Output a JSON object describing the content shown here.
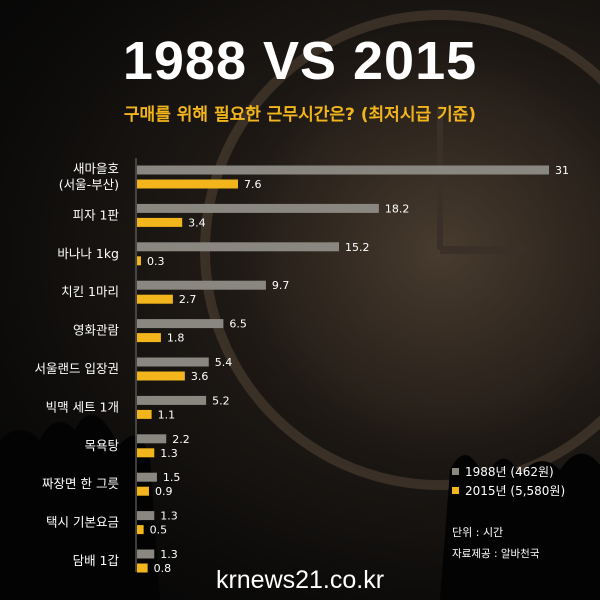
{
  "header": {
    "title": "1988 VS 2015",
    "subtitle": "구매를 위해 필요한 근무시간은? (최저시급 기준)"
  },
  "legend": {
    "items": [
      {
        "label": "1988년 (462원)",
        "color": "#8a8780"
      },
      {
        "label": "2015년 (5,580원)",
        "color": "#f2b51c"
      }
    ]
  },
  "unit_text": "단위 : 시간",
  "source_text": "자료제공 : 알바천국",
  "site_text": "krnews21.co.kr",
  "chart_data": {
    "type": "bar",
    "orientation": "horizontal",
    "categories": [
      [
        "새마을호",
        "(서울-부산)"
      ],
      [
        "피자 1판"
      ],
      [
        "바나나 1kg"
      ],
      [
        "치킨 1마리"
      ],
      [
        "영화관람"
      ],
      [
        "서울랜드 입장권"
      ],
      [
        "빅맥 세트 1개"
      ],
      [
        "목욕탕"
      ],
      [
        "짜장면 한 그릇"
      ],
      [
        "택시 기본요금"
      ],
      [
        "담배 1갑"
      ]
    ],
    "series": [
      {
        "name": "1988년 (462원)",
        "color": "#8a8780",
        "values": [
          31,
          18.2,
          15.2,
          9.7,
          6.5,
          5.4,
          5.2,
          2.2,
          1.5,
          1.3,
          1.3
        ]
      },
      {
        "name": "2015년 (5,580원)",
        "color": "#f2b51c",
        "values": [
          7.6,
          3.4,
          0.3,
          2.7,
          1.8,
          3.6,
          1.1,
          1.3,
          0.9,
          0.5,
          0.8
        ]
      }
    ],
    "xlim": [
      0,
      31
    ],
    "grid": false,
    "legend_position": "bottom-right"
  }
}
